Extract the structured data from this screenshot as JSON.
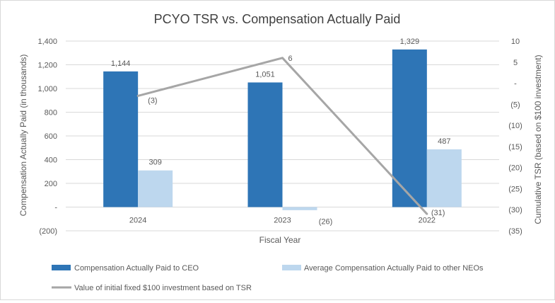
{
  "chart_data": {
    "type": "bar",
    "title": "PCYO TSR vs. Compensation Actually Paid",
    "xlabel": "Fiscal Year",
    "ylabel": "Compensation Actually Paid (in thousands)",
    "y2label": "Cumulative TSR (based on $100 investment)",
    "categories": [
      "2024",
      "2023",
      "2022"
    ],
    "ylim": [
      -200,
      1400
    ],
    "y2lim": [
      -35,
      10
    ],
    "y_ticks": [
      {
        "value": 1400,
        "label": "1,400"
      },
      {
        "value": 1200,
        "label": "1,200"
      },
      {
        "value": 1000,
        "label": "1,000"
      },
      {
        "value": 800,
        "label": "800"
      },
      {
        "value": 600,
        "label": "600"
      },
      {
        "value": 400,
        "label": "400"
      },
      {
        "value": 200,
        "label": "200"
      },
      {
        "value": 0,
        "label": "-"
      },
      {
        "value": -200,
        "label": "(200)"
      }
    ],
    "y2_ticks": [
      {
        "value": 10,
        "label": "10"
      },
      {
        "value": 5,
        "label": "5"
      },
      {
        "value": 0,
        "label": "-"
      },
      {
        "value": -5,
        "label": "(5)"
      },
      {
        "value": -10,
        "label": "(10)"
      },
      {
        "value": -15,
        "label": "(15)"
      },
      {
        "value": -20,
        "label": "(20)"
      },
      {
        "value": -25,
        "label": "(25)"
      },
      {
        "value": -30,
        "label": "(30)"
      },
      {
        "value": -35,
        "label": "(35)"
      }
    ],
    "series": [
      {
        "name": "Compensation Actually Paid to CEO",
        "type": "bar",
        "axis": "left",
        "color": "#2e75b6",
        "values": [
          1144,
          1051,
          1329
        ],
        "labels": [
          "1,144",
          "1,051",
          "1,329"
        ]
      },
      {
        "name": "Average  Compensation Actually Paid to other NEOs",
        "type": "bar",
        "axis": "left",
        "color": "#bdd7ee",
        "values": [
          309,
          -26,
          487
        ],
        "labels": [
          "309",
          "(26)",
          "487"
        ]
      },
      {
        "name": "Value of initial fixed $100 investment based on TSR",
        "type": "line",
        "axis": "right",
        "color": "#a6a6a6",
        "values": [
          -3,
          6,
          -31
        ],
        "labels": [
          "(3)",
          "6",
          "(31)"
        ]
      }
    ],
    "legend_position": "bottom",
    "grid": true
  }
}
